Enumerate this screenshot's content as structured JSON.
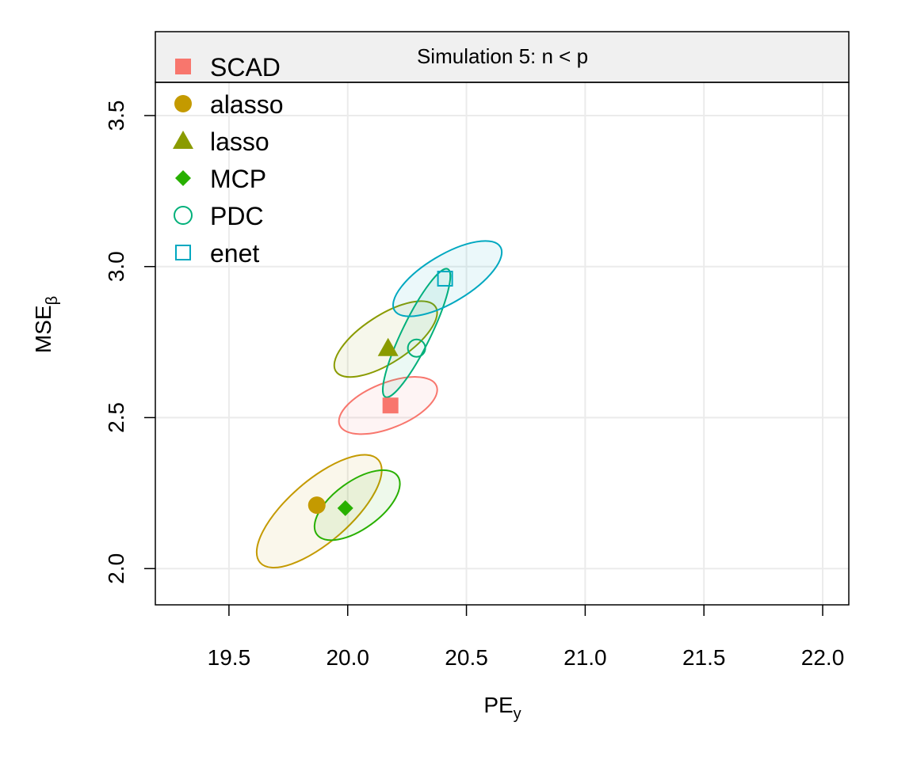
{
  "chart_data": {
    "type": "scatter",
    "title": "Simulation 5: n < p",
    "xlabel": {
      "main": "PE",
      "sub": "y"
    },
    "ylabel": {
      "main": "MSE",
      "sub": "β"
    },
    "xlim": [
      19.19,
      22.11
    ],
    "ylim": [
      1.88,
      3.61
    ],
    "x_ticks": [
      19.5,
      20.0,
      20.5,
      21.0,
      21.5,
      22.0
    ],
    "x_tick_labels": [
      "19.5",
      "20.0",
      "20.5",
      "21.0",
      "21.5",
      "22.0"
    ],
    "y_ticks": [
      2.0,
      2.5,
      3.0,
      3.5
    ],
    "y_tick_labels": [
      "2.0",
      "2.5",
      "3.0",
      "3.5"
    ],
    "grid": true,
    "legend_position": "top-left",
    "series": [
      {
        "name": "SCAD",
        "marker": "square-filled",
        "color": "#F8766D",
        "x": 20.18,
        "y": 2.54,
        "ellipse": {
          "center": [
            20.17,
            2.54
          ],
          "rx": 0.22,
          "ry": 0.095,
          "angle_deg": -22
        }
      },
      {
        "name": "alasso",
        "marker": "circle-filled",
        "color": "#C49A00",
        "x": 19.87,
        "y": 2.21,
        "ellipse": {
          "center": [
            19.88,
            2.19
          ],
          "rx": 0.33,
          "ry": 0.13,
          "angle_deg": -41
        }
      },
      {
        "name": "lasso",
        "marker": "triangle-filled",
        "color": "#8A9B00",
        "x": 20.17,
        "y": 2.73,
        "ellipse": {
          "center": [
            20.16,
            2.76
          ],
          "rx": 0.25,
          "ry": 0.1,
          "angle_deg": -33
        }
      },
      {
        "name": "MCP",
        "marker": "diamond-filled",
        "color": "#28B000",
        "x": 19.99,
        "y": 2.2,
        "ellipse": {
          "center": [
            20.04,
            2.21
          ],
          "rx": 0.21,
          "ry": 0.1,
          "angle_deg": -36
        }
      },
      {
        "name": "PDC",
        "marker": "circle-open",
        "color": "#00B07A",
        "x": 20.29,
        "y": 2.73,
        "ellipse": {
          "center": [
            20.29,
            2.78
          ],
          "rx": 0.3,
          "ry": 0.06,
          "angle_deg": -64
        }
      },
      {
        "name": "enet",
        "marker": "square-open",
        "color": "#00A8C0",
        "x": 20.41,
        "y": 2.96,
        "ellipse": {
          "center": [
            20.42,
            2.96
          ],
          "rx": 0.26,
          "ry": 0.1,
          "angle_deg": -31
        }
      }
    ]
  }
}
